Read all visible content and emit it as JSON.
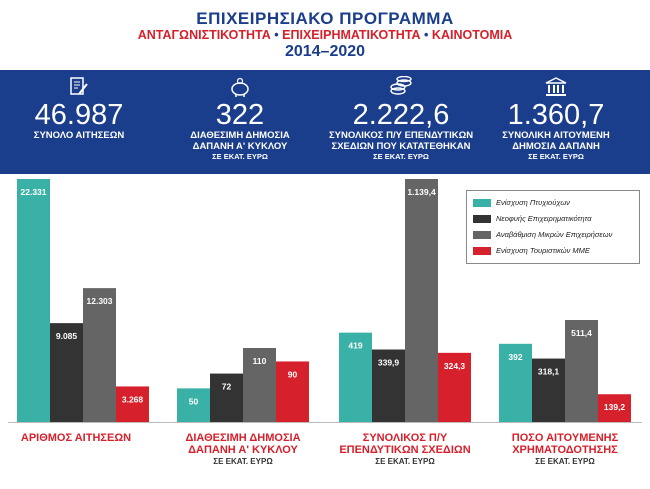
{
  "header": {
    "line1": "ΕΠΙΧΕΙΡΗΣΙΑΚΟ ΠΡΟΓΡΑΜΜΑ",
    "line2_parts": [
      "ΑΝΤΑΓΩΝΙΣΤΙΚΟΤΗΤΑ",
      "ΕΠΙΧΕΙΡΗΜΑΤΙΚΟΤΗΤΑ",
      "ΚΑΙΝΟΤΟΜΙΑ"
    ],
    "line2_sep": "•",
    "years": "2014–2020"
  },
  "stats": [
    {
      "icon": "document-pen-icon",
      "value": "46.987",
      "label1": "ΣΥΝΟΛΟ ΑΙΤΗΣΕΩΝ",
      "label2": "",
      "unit": ""
    },
    {
      "icon": "piggy-bank-icon",
      "value": "322",
      "label1": "ΔΙΑΘΕΣΙΜΗ ΔΗΜΟΣΙΑ",
      "label2": "ΔΑΠΑΝΗ Α' ΚΥΚΛΟΥ",
      "unit": "ΣΕ ΕΚΑΤ. ΕΥΡΩ"
    },
    {
      "icon": "coins-icon",
      "value": "2.222,6",
      "label1": "ΣΥΝΟΛΙΚΟΣ Π/Υ ΕΠΕΝΔΥΤΙΚΩΝ",
      "label2": "ΣΧΕΔΙΩΝ ΠΟΥ ΚΑΤΑΤΕΘΗΚΑΝ",
      "unit": "ΣΕ ΕΚΑΤ. ΕΥΡΩ"
    },
    {
      "icon": "bank-building-icon",
      "value": "1.360,7",
      "label1": "ΣΥΝΟΛΙΚΗ ΑΙΤΟΥΜΕΝΗ",
      "label2": "ΔΗΜΟΣΙΑ ΔΑΠΑΝΗ",
      "unit": "ΣΕ ΕΚΑΤ. ΕΥΡΩ"
    }
  ],
  "colors": {
    "brand_blue": "#1a3e8c",
    "brand_red": "#d6202b"
  },
  "chart_data": {
    "type": "bar",
    "note_scaling": "each group uses its own independent scale",
    "series": [
      {
        "name": "Ενίσχυση Πτυχιούχων",
        "color": "#3ab1a6"
      },
      {
        "name": "Νεοφυής Επιχειρηματικότητα",
        "color": "#333333"
      },
      {
        "name": "Αναβάθμιση Μικρών Επιχειρήσεων",
        "color": "#656565"
      },
      {
        "name": "Ενίσχυση Τουριστικών ΜΜΕ",
        "color": "#d6202b"
      }
    ],
    "groups": [
      {
        "label1": "ΑΡΙΘΜΟΣ ΑΙΤΗΣΕΩΝ",
        "label2": "",
        "unit": "",
        "values": [
          22331,
          9085,
          12303,
          3268
        ],
        "labels": [
          "22.331",
          "9.085",
          "12.303",
          "3.268"
        ]
      },
      {
        "label1": "ΔΙΑΘΕΣΙΜΗ ΔΗΜΟΣΙΑ",
        "label2": "ΔΑΠΑΝΗ Α' ΚΥΚΛΟΥ",
        "unit": "ΣΕ ΕΚΑΤ. ΕΥΡΩ",
        "values": [
          50,
          72,
          110,
          90
        ],
        "labels": [
          "50",
          "72",
          "110",
          "90"
        ]
      },
      {
        "label1": "ΣΥΝΟΛΙΚΟΣ Π/Υ",
        "label2": "ΕΠΕΝΔΥΤΙΚΩΝ ΣΧΕΔΙΩΝ",
        "unit": "ΣΕ ΕΚΑΤ. ΕΥΡΩ",
        "values": [
          419,
          339.9,
          1139.4,
          324.3
        ],
        "labels": [
          "419",
          "339,9",
          "1.139,4",
          "324,3"
        ]
      },
      {
        "label1": "ΠΟΣΟ ΑΙΤΟΥΜΕΝΗΣ",
        "label2": "ΧΡΗΜΑΤΟΔΟΤΗΣΗΣ",
        "unit": "ΣΕ ΕΚΑΤ. ΕΥΡΩ",
        "values": [
          392,
          318.1,
          511.4,
          139.2
        ],
        "labels": [
          "392",
          "318,1",
          "511,4",
          "139,2"
        ]
      }
    ]
  }
}
